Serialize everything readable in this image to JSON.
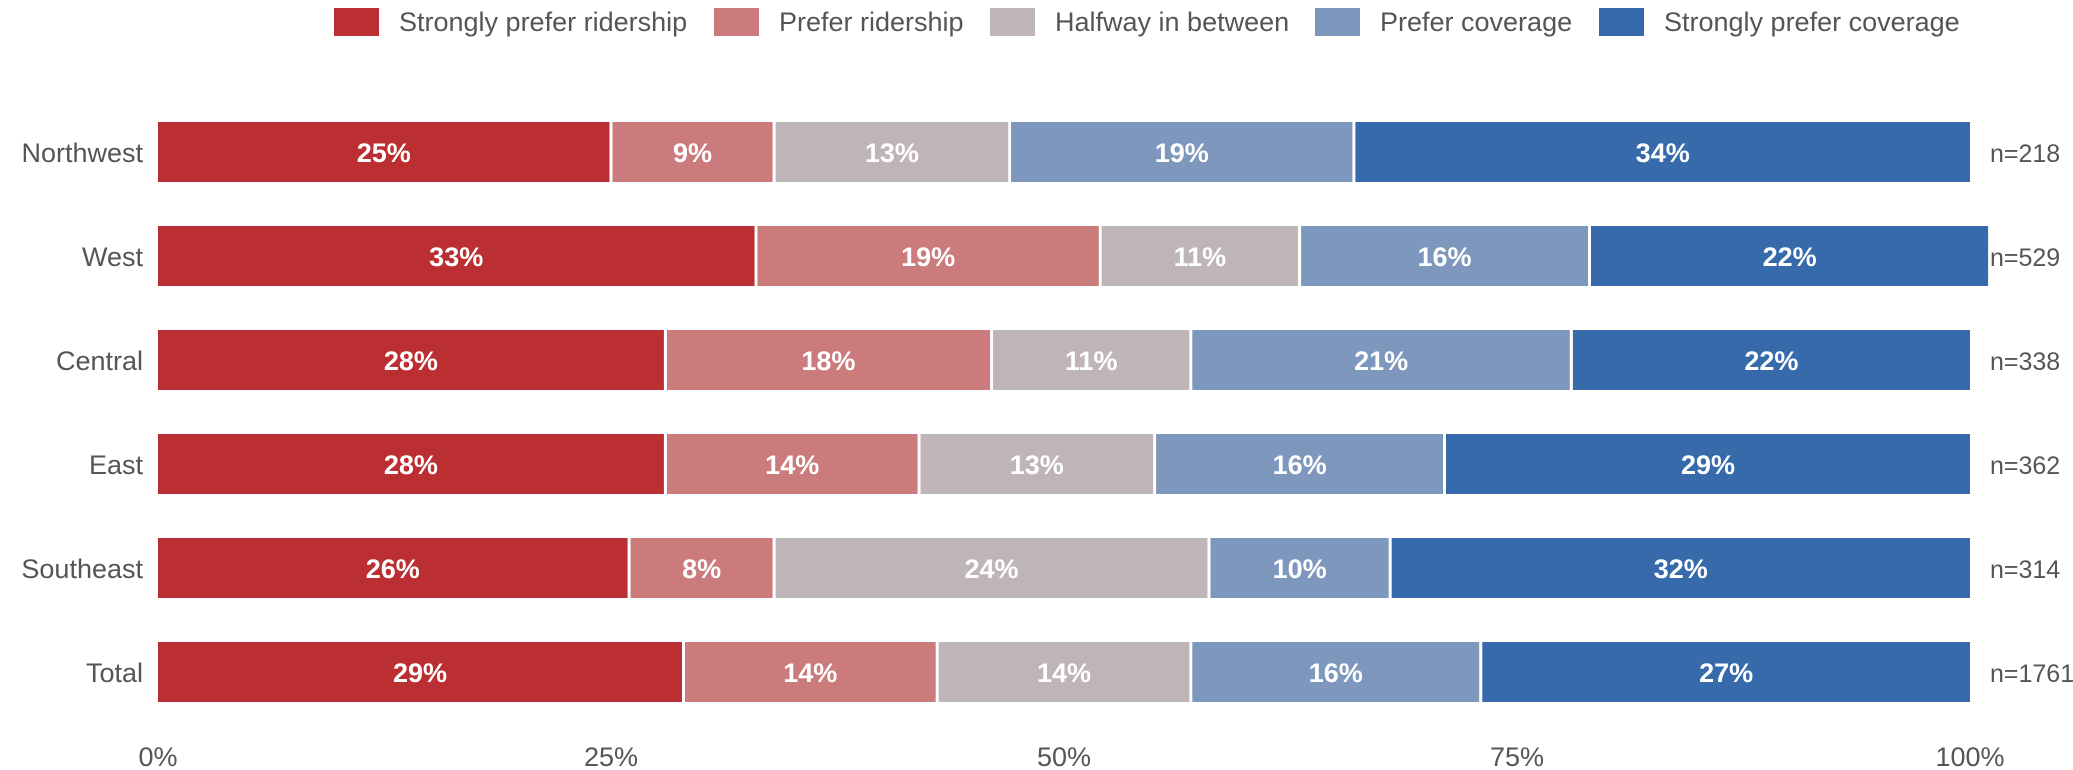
{
  "chart_data": {
    "type": "bar",
    "orientation": "horizontal",
    "stacked": true,
    "percent_stacked": true,
    "categories": [
      "Northwest",
      "West",
      "Central",
      "East",
      "Southeast",
      "Total"
    ],
    "series": [
      {
        "name": "Strongly prefer ridership",
        "color": "#bb2f33",
        "values": [
          25,
          33,
          28,
          28,
          26,
          29
        ],
        "labels": [
          "25%",
          "33%",
          "28%",
          "28%",
          "26%",
          "29%"
        ]
      },
      {
        "name": "Prefer ridership",
        "color": "#cb7b7b",
        "values": [
          9,
          19,
          18,
          14,
          8,
          14
        ],
        "labels": [
          "9%",
          "19%",
          "18%",
          "14%",
          "8%",
          "14%"
        ]
      },
      {
        "name": "Halfway in between",
        "color": "#bfb5b8",
        "values": [
          13,
          11,
          11,
          13,
          24,
          14
        ],
        "labels": [
          "13%",
          "11%",
          "11%",
          "13%",
          "24%",
          "14%"
        ]
      },
      {
        "name": "Prefer coverage",
        "color": "#7d98bc",
        "values": [
          19,
          16,
          21,
          16,
          10,
          16
        ],
        "labels": [
          "19%",
          "16%",
          "21%",
          "16%",
          "10%",
          "16%"
        ]
      },
      {
        "name": "Strongly prefer coverage",
        "color": "#366aab",
        "values": [
          34,
          22,
          22,
          29,
          32,
          27
        ],
        "labels": [
          "34%",
          "22%",
          "22%",
          "29%",
          "32%",
          "27%"
        ]
      }
    ],
    "n_labels": [
      "n=218",
      "n=529",
      "n=338",
      "n=362",
      "n=314",
      "n=1761"
    ],
    "x_ticks": [
      0,
      25,
      50,
      75,
      100
    ],
    "x_tick_labels": [
      "0%",
      "25%",
      "50%",
      "75%",
      "100%"
    ],
    "xlim": [
      0,
      100
    ],
    "grid": false,
    "legend_position": "top"
  }
}
